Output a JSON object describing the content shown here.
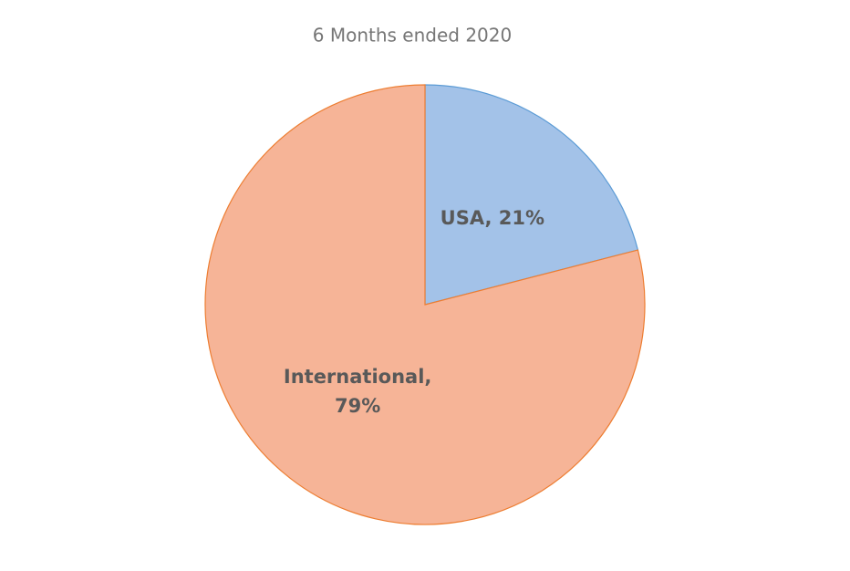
{
  "chart_data": {
    "type": "pie",
    "title": "6 Months ended 2020",
    "values": [
      21,
      79
    ],
    "value_labels": [
      "USA, 21%",
      "International, 79%"
    ],
    "colors": [
      "#a3c2e8",
      "#f6b497"
    ],
    "edge_colors": [
      "#5b9bd5",
      "#ed7d31"
    ]
  }
}
